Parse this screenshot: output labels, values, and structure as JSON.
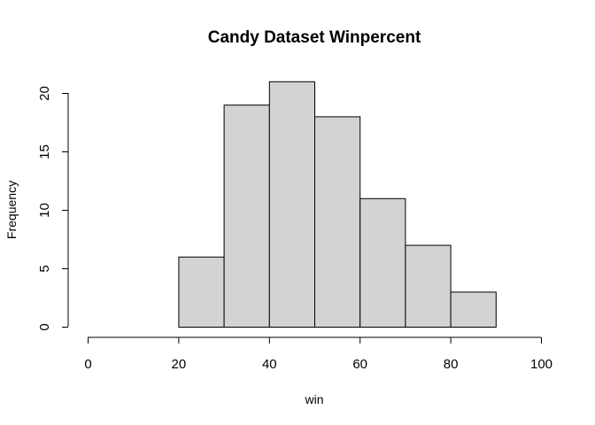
{
  "chart_data": {
    "type": "bar",
    "title": "Candy Dataset Winpercent",
    "xlabel": "win",
    "ylabel": "Frequency",
    "bins": [
      {
        "from": 20,
        "to": 30,
        "count": 6
      },
      {
        "from": 30,
        "to": 40,
        "count": 19
      },
      {
        "from": 40,
        "to": 50,
        "count": 21
      },
      {
        "from": 50,
        "to": 60,
        "count": 18
      },
      {
        "from": 60,
        "to": 70,
        "count": 11
      },
      {
        "from": 70,
        "to": 80,
        "count": 7
      },
      {
        "from": 80,
        "to": 90,
        "count": 3
      }
    ],
    "xlim": [
      0,
      100
    ],
    "ylim": [
      0,
      21
    ],
    "xticks": [
      0,
      20,
      40,
      60,
      80,
      100
    ],
    "yticks": [
      0,
      5,
      10,
      15,
      20
    ],
    "grid": false,
    "bar_color": "#d3d3d3"
  }
}
